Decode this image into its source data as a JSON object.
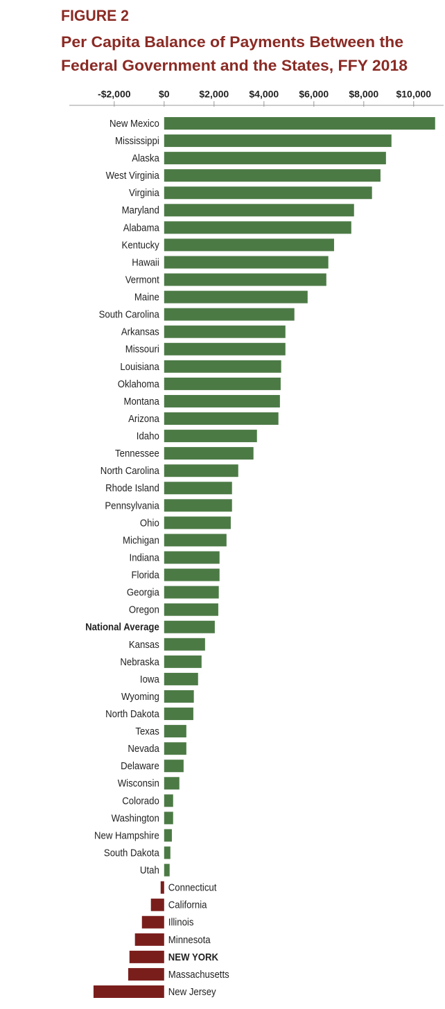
{
  "chart_data": {
    "type": "hbar",
    "figure_label": "FIGURE 2",
    "title": [
      "Per Capita Balance of Payments Between the",
      "Federal Government and the States, FFY 2018"
    ],
    "categories": [
      "New Mexico",
      "Mississippi",
      "Alaska",
      "West Virginia",
      "Virginia",
      "Maryland",
      "Alabama",
      "Kentucky",
      "Hawaii",
      "Vermont",
      "Maine",
      "South Carolina",
      "Arkansas",
      "Missouri",
      "Louisiana",
      "Oklahoma",
      "Montana",
      "Arizona",
      "Idaho",
      "Tennessee",
      "North Carolina",
      "Rhode Island",
      "Pennsylvania",
      "Ohio",
      "Michigan",
      "Indiana",
      "Florida",
      "Georgia",
      "Oregon",
      "National Average",
      "Kansas",
      "Nebraska",
      "Iowa",
      "Wyoming",
      "North Dakota",
      "Texas",
      "Nevada",
      "Delaware",
      "Wisconsin",
      "Colorado",
      "Washington",
      "New Hampshire",
      "South Dakota",
      "Utah",
      "Connecticut",
      "California",
      "Illinois",
      "Minnesota",
      "NEW YORK",
      "Massachusetts",
      "New Jersey"
    ],
    "values": [
      10860,
      9110,
      8890,
      8670,
      8330,
      7610,
      7500,
      6810,
      6580,
      6500,
      5750,
      5220,
      4860,
      4860,
      4690,
      4670,
      4640,
      4580,
      3720,
      3580,
      2970,
      2720,
      2720,
      2670,
      2500,
      2220,
      2220,
      2190,
      2170,
      2030,
      1640,
      1500,
      1360,
      1190,
      1170,
      890,
      890,
      780,
      610,
      360,
      360,
      310,
      250,
      220,
      -140,
      -530,
      -890,
      -1170,
      -1390,
      -1440,
      -2830
    ],
    "bold_categories": [
      29,
      48
    ],
    "positive_color": "#4c7a45",
    "negative_color": "#7a1e1c",
    "title_color": "#8a2a24",
    "xlim": [
      -3800,
      11200
    ],
    "xticks": [
      {
        "value": -2000,
        "label": "-$2,000"
      },
      {
        "value": 0,
        "label": "$0"
      },
      {
        "value": 2000,
        "label": "$2,000"
      },
      {
        "value": 4000,
        "label": "$4,000"
      },
      {
        "value": 6000,
        "label": "$6,000"
      },
      {
        "value": 8000,
        "label": "$8,000"
      },
      {
        "value": 10000,
        "label": "$10,000"
      }
    ]
  }
}
